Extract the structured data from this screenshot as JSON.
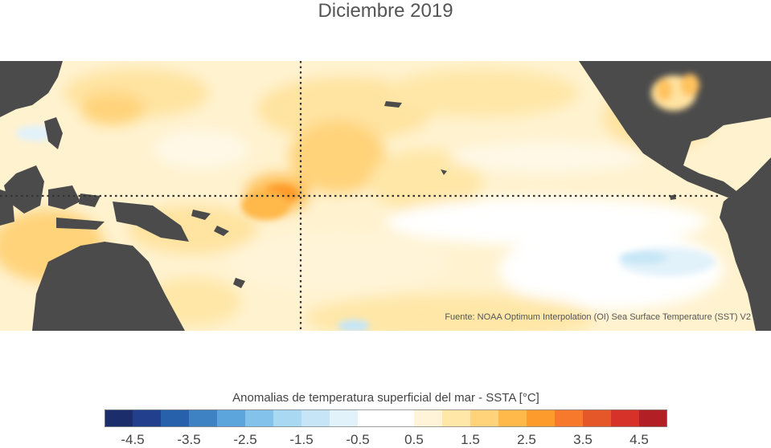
{
  "title": "Diciembre 2019",
  "source_note": "Fuente: NOAA Optimum Interpolation (OI) Sea Surface Temperature (SST) V2",
  "legend": {
    "title": "Anomalias de temperatura superficial del mar - SSTA  [°C]",
    "range": [
      -5.0,
      5.0
    ],
    "step": 0.5,
    "bin_colors": [
      "#1b2d6b",
      "#213f8c",
      "#2760ab",
      "#3f82c4",
      "#5ca5dc",
      "#83c2ea",
      "#a8d8f2",
      "#c6e6f7",
      "#e2f2fa",
      "#ffffff",
      "#ffffff",
      "#fff4d7",
      "#ffe7a8",
      "#ffd37a",
      "#ffb84a",
      "#fd9b2c",
      "#f7792b",
      "#e55629",
      "#d6322a",
      "#b21f24"
    ],
    "tick_labels": [
      "-4.5",
      "-3.5",
      "-2.5",
      "-1.5",
      "-0.5",
      "0.5",
      "1.5",
      "2.5",
      "3.5",
      "4.5"
    ],
    "tick_values": [
      -4.5,
      -3.5,
      -2.5,
      -1.5,
      -0.5,
      0.5,
      1.5,
      2.5,
      3.5,
      4.5
    ]
  },
  "colors": {
    "land": "#4b4b4b",
    "ocean_base": "#fff2cf",
    "guide_line": "#333333"
  }
}
